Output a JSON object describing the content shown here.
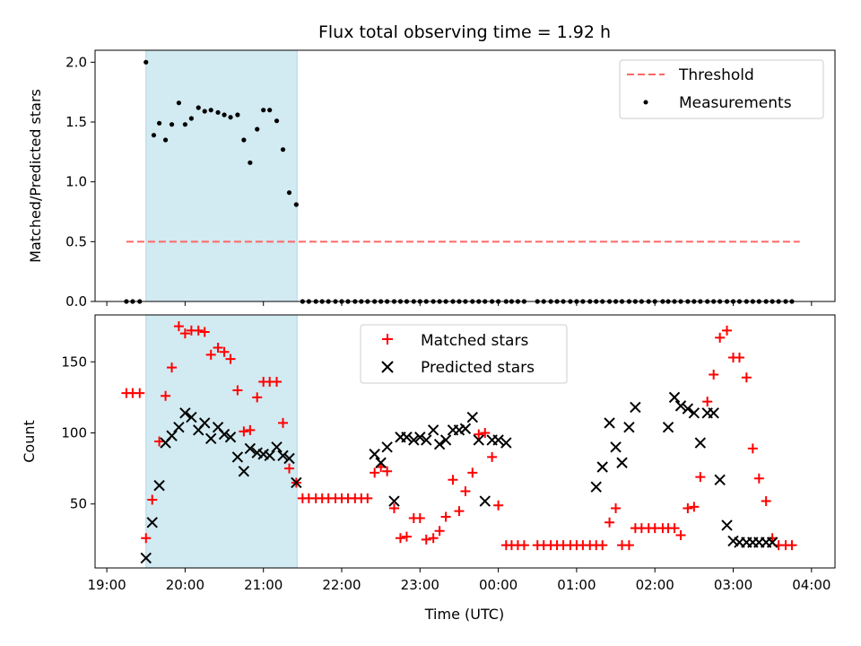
{
  "chart_data": [
    {
      "type": "scatter",
      "panel": "top",
      "title": "Flux total observing time = 1.92 h",
      "ylabel": "Matched/Predicted stars",
      "xlim": [
        18.85,
        28.3
      ],
      "ylim": [
        0.0,
        2.1
      ],
      "yticks": [
        0.0,
        0.5,
        1.0,
        1.5,
        2.0
      ],
      "ytick_labels": [
        "0.0",
        "0.5",
        "1.0",
        "1.5",
        "2.0"
      ],
      "x_tick_labels_shown": false,
      "shaded_region": {
        "x": [
          19.5,
          21.43
        ],
        "color": "#add8e6"
      },
      "threshold": {
        "name": "Threshold",
        "value": 0.5,
        "x": [
          19.25,
          27.85
        ],
        "color": "#ff6666",
        "style": "dashed"
      },
      "series": [
        {
          "name": "Measurements",
          "marker": "dot",
          "color": "#000000",
          "x": [
            19.25,
            19.33,
            19.42,
            19.5,
            19.6,
            19.67,
            19.75,
            19.83,
            19.92,
            20.0,
            20.08,
            20.17,
            20.25,
            20.33,
            20.42,
            20.5,
            20.58,
            20.67,
            20.75,
            20.83,
            20.92,
            21.0,
            21.08,
            21.17,
            21.25,
            21.33,
            21.42,
            21.5,
            21.58,
            21.67,
            21.75,
            21.83,
            21.92,
            22.0,
            22.08,
            22.17,
            22.25,
            22.33,
            22.42,
            22.5,
            22.58,
            22.67,
            22.75,
            22.83,
            22.92,
            23.0,
            23.08,
            23.17,
            23.25,
            23.33,
            23.42,
            23.5,
            23.58,
            23.67,
            23.75,
            23.83,
            23.92,
            24.0,
            24.1,
            24.17,
            24.25,
            24.33,
            24.5,
            24.58,
            24.67,
            24.75,
            24.83,
            24.92,
            25.0,
            25.08,
            25.17,
            25.25,
            25.33,
            25.42,
            25.5,
            25.58,
            25.67,
            25.75,
            25.83,
            25.92,
            26.0,
            26.1,
            26.17,
            26.25,
            26.33,
            26.42,
            26.5,
            26.58,
            26.67,
            26.75,
            26.83,
            26.92,
            27.0,
            27.08,
            27.17,
            27.25,
            27.33,
            27.42,
            27.5,
            27.58,
            27.67,
            27.75
          ],
          "y": [
            0.0,
            0.0,
            0.0,
            2.0,
            1.39,
            1.49,
            1.35,
            1.48,
            1.66,
            1.48,
            1.53,
            1.62,
            1.59,
            1.6,
            1.58,
            1.56,
            1.54,
            1.56,
            1.35,
            1.16,
            1.44,
            1.6,
            1.6,
            1.51,
            1.27,
            0.91,
            0.81,
            0.0,
            0.0,
            0.0,
            0.0,
            0.0,
            0.0,
            0.0,
            0.0,
            0.0,
            0.0,
            0.0,
            0.0,
            0.0,
            0.0,
            0.0,
            0.0,
            0.0,
            0.0,
            0.0,
            0.0,
            0.0,
            0.0,
            0.0,
            0.0,
            0.0,
            0.0,
            0.0,
            0.0,
            0.0,
            0.0,
            0.0,
            0.0,
            0.0,
            0.0,
            0.0,
            0.0,
            0.0,
            0.0,
            0.0,
            0.0,
            0.0,
            0.0,
            0.0,
            0.0,
            0.0,
            0.0,
            0.0,
            0.0,
            0.0,
            0.0,
            0.0,
            0.0,
            0.0,
            0.0,
            0.0,
            0.0,
            0.0,
            0.0,
            0.0,
            0.0,
            0.0,
            0.0,
            0.0,
            0.0,
            0.0,
            0.0,
            0.0,
            0.0,
            0.0,
            0.0,
            0.0,
            0.0,
            0.0,
            0.0,
            0.0
          ]
        }
      ],
      "legend": {
        "placement": "top-right",
        "entries": [
          "Threshold",
          "Measurements"
        ]
      }
    },
    {
      "type": "scatter",
      "panel": "bottom",
      "title": "",
      "xlabel": "Time (UTC)",
      "ylabel": "Count",
      "xlim": [
        18.85,
        28.3
      ],
      "ylim": [
        5,
        183
      ],
      "yticks": [
        50,
        100,
        150
      ],
      "ytick_labels": [
        "50",
        "100",
        "150"
      ],
      "xticks": [
        19,
        20,
        21,
        22,
        23,
        24,
        25,
        26,
        27,
        28
      ],
      "xtick_labels": [
        "19:00",
        "20:00",
        "21:00",
        "22:00",
        "23:00",
        "00:00",
        "01:00",
        "02:00",
        "03:00",
        "04:00"
      ],
      "shaded_region": {
        "x": [
          19.5,
          21.43
        ],
        "color": "#add8e6"
      },
      "series": [
        {
          "name": "Matched stars",
          "marker": "plus",
          "color": "#ff0000",
          "x": [
            19.25,
            19.33,
            19.42,
            19.5,
            19.58,
            19.67,
            19.75,
            19.83,
            19.92,
            20.0,
            20.08,
            20.17,
            20.25,
            20.33,
            20.42,
            20.5,
            20.58,
            20.67,
            20.75,
            20.83,
            20.92,
            21.0,
            21.08,
            21.17,
            21.25,
            21.33,
            21.42,
            21.5,
            21.58,
            21.67,
            21.75,
            21.83,
            21.92,
            22.0,
            22.08,
            22.17,
            22.25,
            22.33,
            22.42,
            22.5,
            22.58,
            22.67,
            22.75,
            22.83,
            22.92,
            23.0,
            23.08,
            23.17,
            23.25,
            23.33,
            23.42,
            23.5,
            23.58,
            23.67,
            23.75,
            23.83,
            23.92,
            24.0,
            24.1,
            24.17,
            24.25,
            24.33,
            24.5,
            24.58,
            24.67,
            24.75,
            24.83,
            24.92,
            25.0,
            25.08,
            25.17,
            25.25,
            25.33,
            25.42,
            25.5,
            25.58,
            25.67,
            25.75,
            25.83,
            25.92,
            26.0,
            26.1,
            26.17,
            26.25,
            26.33,
            26.42,
            26.5,
            26.58,
            26.67,
            26.75,
            26.83,
            26.92,
            27.0,
            27.08,
            27.17,
            27.25,
            27.33,
            27.42,
            27.5,
            27.58,
            27.67,
            27.75
          ],
          "y": [
            128,
            128,
            128,
            26,
            53,
            94,
            126,
            146,
            175,
            170,
            172,
            172,
            171,
            155,
            160,
            157,
            152,
            130,
            101,
            102,
            125,
            136,
            136,
            136,
            107,
            75,
            65,
            54,
            54,
            54,
            54,
            54,
            54,
            54,
            54,
            54,
            54,
            54,
            72,
            76,
            73,
            47,
            26,
            27,
            40,
            40,
            25,
            26,
            31,
            41,
            67,
            45,
            59,
            72,
            99,
            100,
            83,
            49,
            21,
            21,
            21,
            21,
            21,
            21,
            21,
            21,
            21,
            21,
            21,
            21,
            21,
            21,
            21,
            37,
            47,
            21,
            21,
            33,
            33,
            33,
            33,
            33,
            33,
            33,
            28,
            47,
            48,
            69,
            122,
            141,
            167,
            172,
            153,
            153,
            139,
            89,
            68,
            52,
            26,
            21,
            21,
            21
          ]
        },
        {
          "name": "Predicted stars",
          "marker": "x",
          "color": "#000000",
          "x": [
            19.5,
            19.58,
            19.67,
            19.75,
            19.83,
            19.92,
            20.0,
            20.08,
            20.17,
            20.25,
            20.33,
            20.42,
            20.5,
            20.58,
            20.67,
            20.75,
            20.83,
            20.92,
            21.0,
            21.08,
            21.17,
            21.25,
            21.33,
            21.42,
            22.42,
            22.5,
            22.58,
            22.67,
            22.75,
            22.83,
            22.92,
            23.0,
            23.08,
            23.17,
            23.25,
            23.33,
            23.42,
            23.5,
            23.58,
            23.67,
            23.75,
            23.83,
            23.92,
            24.0,
            24.1,
            25.25,
            25.33,
            25.42,
            25.5,
            25.58,
            25.67,
            25.75,
            26.17,
            26.25,
            26.33,
            26.42,
            26.5,
            26.58,
            26.67,
            26.75,
            26.83,
            26.92,
            27.0,
            27.08,
            27.17,
            27.25,
            27.33,
            27.42,
            27.5
          ],
          "y": [
            12,
            37,
            63,
            93,
            98,
            104,
            114,
            111,
            102,
            107,
            96,
            104,
            99,
            97,
            83,
            73,
            89,
            86,
            85,
            84,
            90,
            84,
            82,
            65,
            85,
            79,
            90,
            52,
            97,
            97,
            95,
            97,
            95,
            102,
            92,
            95,
            102,
            102,
            103,
            111,
            95,
            52,
            95,
            95,
            93,
            62,
            76,
            107,
            90,
            79,
            104,
            118,
            104,
            125,
            119,
            117,
            114,
            93,
            114,
            114,
            67,
            35,
            24,
            23,
            23,
            23,
            23,
            23,
            23
          ]
        }
      ],
      "legend": {
        "placement": "top-center",
        "entries": [
          "Matched stars",
          "Predicted stars"
        ]
      }
    }
  ]
}
